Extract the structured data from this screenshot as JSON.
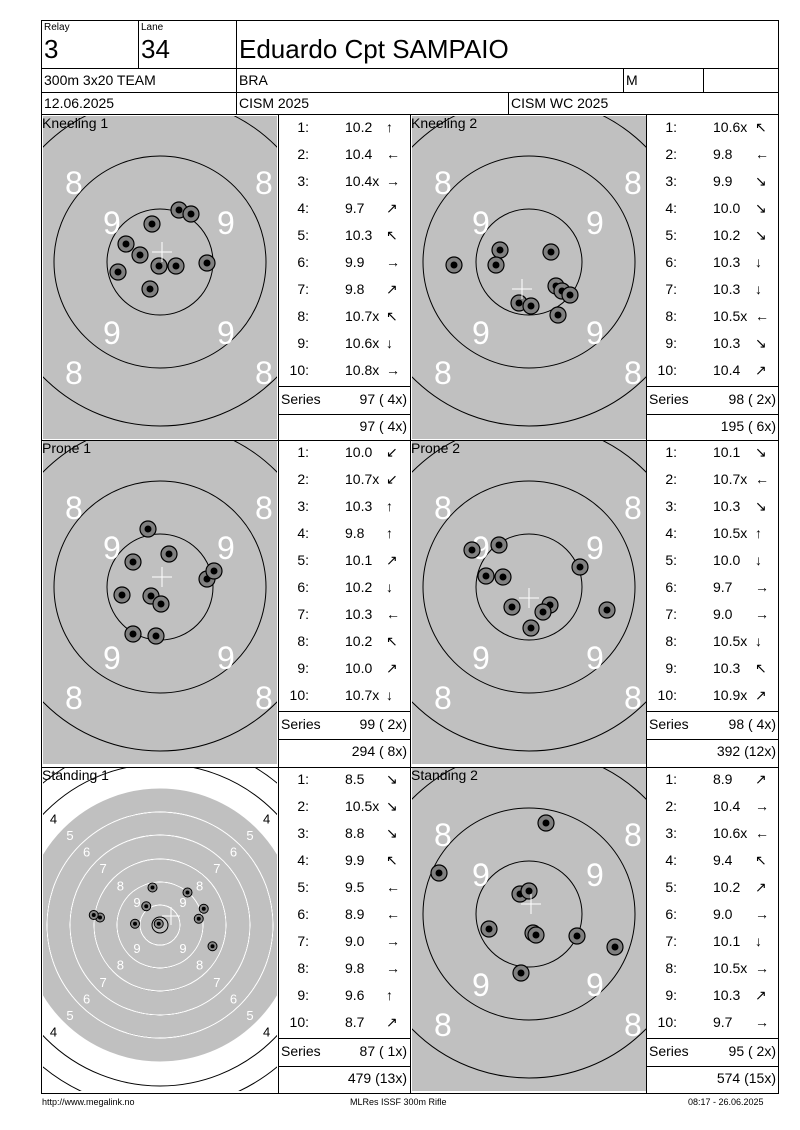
{
  "header": {
    "relay_label": "Relay",
    "relay": "3",
    "lane_label": "Lane",
    "lane": "34",
    "name": "Eduardo Cpt SAMPAIO",
    "event": "300m 3x20 TEAM",
    "nation": "BRA",
    "gender": "M",
    "date": "12.06.2025",
    "competition": "CISM 2025",
    "match": "CISM WC 2025"
  },
  "footer": {
    "url": "http://www.megalink.no",
    "system": "MLRes ISSF 300m Rifle",
    "timestamp": "08:17 - 26.06.2025"
  },
  "series": [
    {
      "title": "Kneeling 1",
      "shots": [
        {
          "n": "1:",
          "v": "10.2",
          "a": "↑"
        },
        {
          "n": "2:",
          "v": "10.4",
          "a": "←"
        },
        {
          "n": "3:",
          "v": "10.4x",
          "a": "→"
        },
        {
          "n": "4:",
          "v": "9.7",
          "a": "↗"
        },
        {
          "n": "5:",
          "v": "10.3",
          "a": "↖"
        },
        {
          "n": "6:",
          "v": "9.9",
          "a": "→"
        },
        {
          "n": "7:",
          "v": "9.8",
          "a": "↗"
        },
        {
          "n": "8:",
          "v": "10.7x",
          "a": "↖"
        },
        {
          "n": "9:",
          "v": "10.6x",
          "a": "↓"
        },
        {
          "n": "10:",
          "v": "10.8x",
          "a": "→"
        }
      ],
      "series_label": "Series",
      "series_total": "97 ( 4x)",
      "running_total": "97 ( 4x)"
    },
    {
      "title": "Kneeling 2",
      "shots": [
        {
          "n": "1:",
          "v": "10.6x",
          "a": "↖"
        },
        {
          "n": "2:",
          "v": "9.8",
          "a": "←"
        },
        {
          "n": "3:",
          "v": "9.9",
          "a": "↘"
        },
        {
          "n": "4:",
          "v": "10.0",
          "a": "↘"
        },
        {
          "n": "5:",
          "v": "10.2",
          "a": "↘"
        },
        {
          "n": "6:",
          "v": "10.3",
          "a": "↓"
        },
        {
          "n": "7:",
          "v": "10.3",
          "a": "↓"
        },
        {
          "n": "8:",
          "v": "10.5x",
          "a": "←"
        },
        {
          "n": "9:",
          "v": "10.3",
          "a": "↘"
        },
        {
          "n": "10:",
          "v": "10.4",
          "a": "↗"
        }
      ],
      "series_label": "Series",
      "series_total": "98 ( 2x)",
      "running_total": "195 ( 6x)"
    },
    {
      "title": "Prone 1",
      "shots": [
        {
          "n": "1:",
          "v": "10.0",
          "a": "↙"
        },
        {
          "n": "2:",
          "v": "10.7x",
          "a": "↙"
        },
        {
          "n": "3:",
          "v": "10.3",
          "a": "↑"
        },
        {
          "n": "4:",
          "v": "9.8",
          "a": "↑"
        },
        {
          "n": "5:",
          "v": "10.1",
          "a": "↗"
        },
        {
          "n": "6:",
          "v": "10.2",
          "a": "↓"
        },
        {
          "n": "7:",
          "v": "10.3",
          "a": "←"
        },
        {
          "n": "8:",
          "v": "10.2",
          "a": "↖"
        },
        {
          "n": "9:",
          "v": "10.0",
          "a": "↗"
        },
        {
          "n": "10:",
          "v": "10.7x",
          "a": "↓"
        }
      ],
      "series_label": "Series",
      "series_total": "99 ( 2x)",
      "running_total": "294 ( 8x)"
    },
    {
      "title": "Prone 2",
      "shots": [
        {
          "n": "1:",
          "v": "10.1",
          "a": "↘"
        },
        {
          "n": "2:",
          "v": "10.7x",
          "a": "←"
        },
        {
          "n": "3:",
          "v": "10.3",
          "a": "↘"
        },
        {
          "n": "4:",
          "v": "10.5x",
          "a": "↑"
        },
        {
          "n": "5:",
          "v": "10.0",
          "a": "↓"
        },
        {
          "n": "6:",
          "v": "9.7",
          "a": "→"
        },
        {
          "n": "7:",
          "v": "9.0",
          "a": "→"
        },
        {
          "n": "8:",
          "v": "10.5x",
          "a": "↓"
        },
        {
          "n": "9:",
          "v": "10.3",
          "a": "↖"
        },
        {
          "n": "10:",
          "v": "10.9x",
          "a": "↗"
        }
      ],
      "series_label": "Series",
      "series_total": "98 ( 4x)",
      "running_total": "392 (12x)"
    },
    {
      "title": "Standing 1",
      "shots": [
        {
          "n": "1:",
          "v": "8.5",
          "a": "↘"
        },
        {
          "n": "2:",
          "v": "10.5x",
          "a": "↘"
        },
        {
          "n": "3:",
          "v": "8.8",
          "a": "↘"
        },
        {
          "n": "4:",
          "v": "9.9",
          "a": "↖"
        },
        {
          "n": "5:",
          "v": "9.5",
          "a": "←"
        },
        {
          "n": "6:",
          "v": "8.9",
          "a": "←"
        },
        {
          "n": "7:",
          "v": "9.0",
          "a": "→"
        },
        {
          "n": "8:",
          "v": "9.8",
          "a": "→"
        },
        {
          "n": "9:",
          "v": "9.6",
          "a": "↑"
        },
        {
          "n": "10:",
          "v": "8.7",
          "a": "↗"
        }
      ],
      "series_label": "Series",
      "series_total": "87 ( 1x)",
      "running_total": "479 (13x)"
    },
    {
      "title": "Standing 2",
      "shots": [
        {
          "n": "1:",
          "v": "8.9",
          "a": "↗"
        },
        {
          "n": "2:",
          "v": "10.4",
          "a": "→"
        },
        {
          "n": "3:",
          "v": "10.6x",
          "a": "←"
        },
        {
          "n": "4:",
          "v": "9.4",
          "a": "↖"
        },
        {
          "n": "5:",
          "v": "10.2",
          "a": "↗"
        },
        {
          "n": "6:",
          "v": "9.0",
          "a": "→"
        },
        {
          "n": "7:",
          "v": "10.1",
          "a": "↓"
        },
        {
          "n": "8:",
          "v": "10.5x",
          "a": "→"
        },
        {
          "n": "9:",
          "v": "10.3",
          "a": "↗"
        },
        {
          "n": "10:",
          "v": "9.7",
          "a": "→"
        }
      ],
      "series_label": "Series",
      "series_total": "95 ( 2x)",
      "running_total": "574 (15x)"
    }
  ],
  "target_labels": {
    "zoomed": [
      "8",
      "9"
    ],
    "full": [
      "4",
      "5",
      "6",
      "7",
      "8",
      "9"
    ]
  },
  "colors": {
    "target_gray": "#c0c0c0",
    "ring": "#000000",
    "label_white": "#ffffff"
  }
}
